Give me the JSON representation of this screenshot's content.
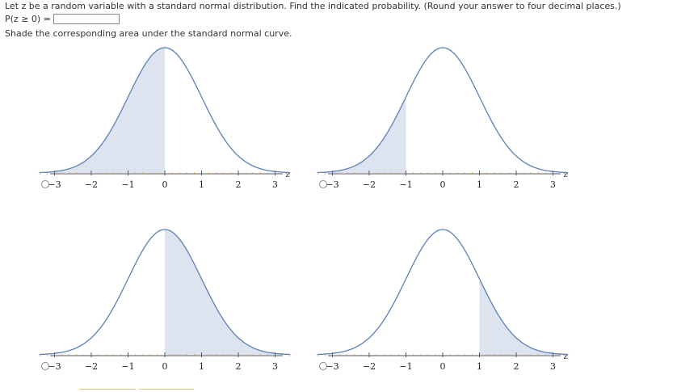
{
  "question": {
    "prompt": "Let z be a random variable with a standard normal distribution. Find the indicated probability. (Round your answer to four decimal places.)",
    "probability_label": "P(z ≥ 0) =",
    "answer_value": "",
    "shade_instruction": "Shade the corresponding area under the standard normal curve."
  },
  "graphs": [
    {
      "option": "a",
      "shade_from": -3.5,
      "shade_to": 0,
      "selected": false,
      "axis_label": "z",
      "tick_labels": [
        "−3",
        "−2",
        "−1",
        "0",
        "1",
        "2",
        "3"
      ]
    },
    {
      "option": "b",
      "shade_from": -3.5,
      "shade_to": -1,
      "selected": false,
      "axis_label": "z",
      "tick_labels": [
        "−3",
        "−2",
        "−1",
        "0",
        "1",
        "2",
        "3"
      ]
    },
    {
      "option": "c",
      "shade_from": 0,
      "shade_to": 3.5,
      "selected": false,
      "axis_label": "",
      "tick_labels": [
        "−3",
        "−2",
        "−1",
        "0",
        "1",
        "2",
        "3"
      ]
    },
    {
      "option": "d",
      "shade_from": 1,
      "shade_to": 3.5,
      "selected": false,
      "axis_label": "z",
      "tick_labels": [
        "−3",
        "−2",
        "−1",
        "0",
        "1",
        "2",
        "3"
      ]
    }
  ],
  "colors": {
    "curve": "#5b7fb8",
    "shade": "#dde4ef",
    "axis": "#555555",
    "minor_tick": "#d9a066"
  }
}
